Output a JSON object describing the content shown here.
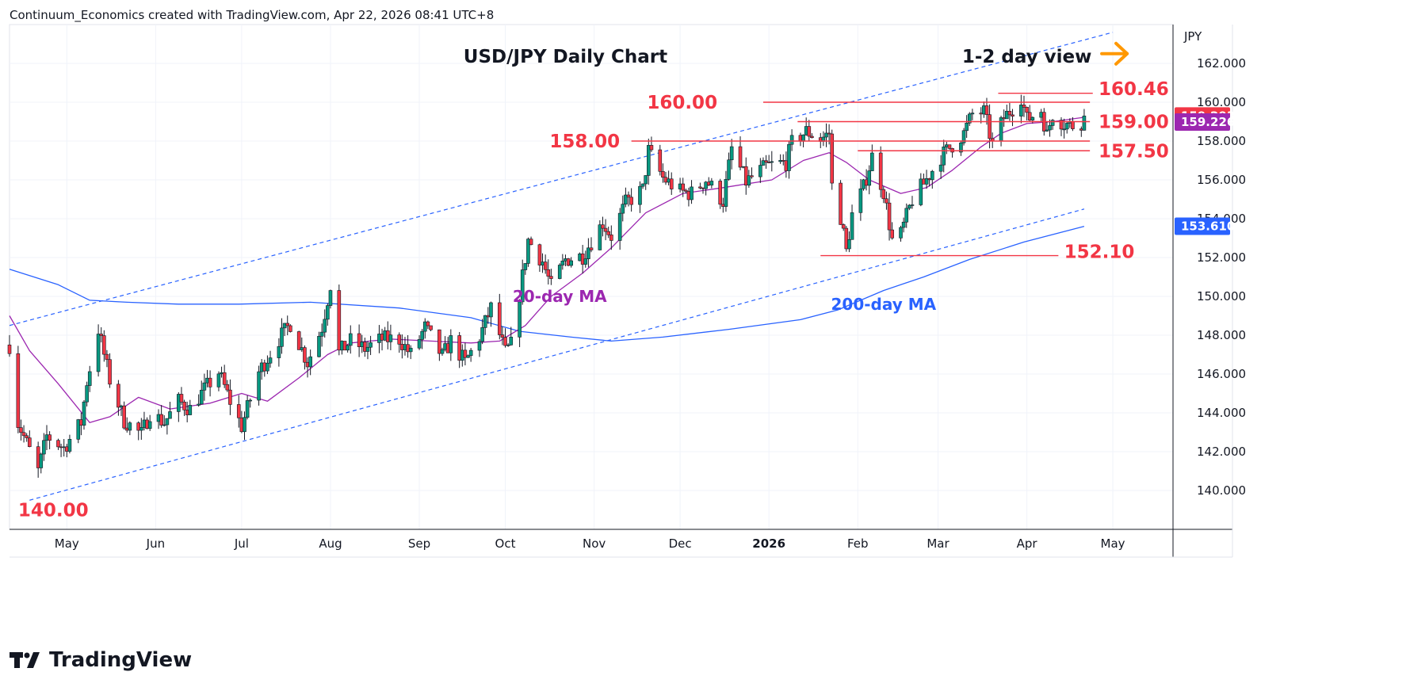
{
  "header": {
    "text": "Continuum_Economics created with TradingView.com, Apr 22, 2026 08:41 UTC+8"
  },
  "footer": {
    "brand": "TradingView",
    "logo_icon": "tradingview-logo-icon"
  },
  "colors": {
    "up": "#089981",
    "down": "#f23645",
    "level": "#f23645",
    "ma20": "#9c27b0",
    "ma200": "#2962ff",
    "channel": "#2962ff",
    "arrow": "#ff9800",
    "grid": "#f0f3fa"
  },
  "chart_data": {
    "type": "candlestick",
    "title": "USD/JPY Daily Chart",
    "subtitle": "1-2 day view",
    "currency": "JPY",
    "ylim": [
      138.0,
      164.0
    ],
    "yticks": [
      140,
      142,
      144,
      146,
      148,
      150,
      152,
      154,
      156,
      158,
      160,
      162
    ],
    "ytick_labels": [
      "140.000",
      "142.000",
      "144.000",
      "146.000",
      "148.000",
      "150.000",
      "152.000",
      "154.000",
      "156.000",
      "158.000",
      "160.000",
      "162.000"
    ],
    "x_start": "2025-04-11",
    "x_end": "2026-05-22",
    "xticks": [
      {
        "date": "2025-05-01",
        "label": "May"
      },
      {
        "date": "2025-06-01",
        "label": "Jun"
      },
      {
        "date": "2025-07-01",
        "label": "Jul"
      },
      {
        "date": "2025-08-01",
        "label": "Aug"
      },
      {
        "date": "2025-09-01",
        "label": "Sep"
      },
      {
        "date": "2025-10-01",
        "label": "Oct"
      },
      {
        "date": "2025-11-01",
        "label": "Nov"
      },
      {
        "date": "2025-12-01",
        "label": "Dec"
      },
      {
        "date": "2026-01-01",
        "label": "2026",
        "bold": true
      },
      {
        "date": "2026-02-01",
        "label": "Feb"
      },
      {
        "date": "2026-03-01",
        "label": "Mar"
      },
      {
        "date": "2026-04-01",
        "label": "Apr"
      },
      {
        "date": "2026-05-01",
        "label": "May"
      }
    ],
    "close_path": [
      [
        "2025-04-11",
        147.5
      ],
      [
        "2025-04-14",
        143.5
      ],
      [
        "2025-04-21",
        141.0
      ],
      [
        "2025-04-24",
        142.8
      ],
      [
        "2025-04-30",
        142.2
      ],
      [
        "2025-05-06",
        143.5
      ],
      [
        "2025-05-08",
        145.6
      ],
      [
        "2025-05-12",
        148.3
      ],
      [
        "2025-05-16",
        145.7
      ],
      [
        "2025-05-21",
        143.6
      ],
      [
        "2025-05-27",
        142.9
      ],
      [
        "2025-05-30",
        144.0
      ],
      [
        "2025-06-04",
        143.5
      ],
      [
        "2025-06-09",
        144.6
      ],
      [
        "2025-06-13",
        144.2
      ],
      [
        "2025-06-18",
        145.2
      ],
      [
        "2025-06-23",
        146.1
      ],
      [
        "2025-06-27",
        144.6
      ],
      [
        "2025-07-01",
        143.3
      ],
      [
        "2025-07-07",
        146.1
      ],
      [
        "2025-07-14",
        147.8
      ],
      [
        "2025-07-18",
        148.6
      ],
      [
        "2025-07-24",
        146.6
      ],
      [
        "2025-07-29",
        148.4
      ],
      [
        "2025-08-01",
        150.6
      ],
      [
        "2025-08-04",
        147.1
      ],
      [
        "2025-08-08",
        147.7
      ],
      [
        "2025-08-13",
        147.3
      ],
      [
        "2025-08-19",
        147.8
      ],
      [
        "2025-08-25",
        147.8
      ],
      [
        "2025-08-29",
        147.0
      ],
      [
        "2025-09-03",
        148.4
      ],
      [
        "2025-09-09",
        146.9
      ],
      [
        "2025-09-12",
        147.7
      ],
      [
        "2025-09-17",
        146.6
      ],
      [
        "2025-09-22",
        147.9
      ],
      [
        "2025-09-26",
        149.4
      ],
      [
        "2025-10-01",
        147.1
      ],
      [
        "2025-10-03",
        147.5
      ],
      [
        "2025-10-06",
        150.1
      ],
      [
        "2025-10-09",
        152.9
      ],
      [
        "2025-10-14",
        151.8
      ],
      [
        "2025-10-17",
        150.5
      ],
      [
        "2025-10-22",
        151.9
      ],
      [
        "2025-10-28",
        152.1
      ],
      [
        "2025-11-04",
        153.8
      ],
      [
        "2025-11-07",
        153.1
      ],
      [
        "2025-11-12",
        154.8
      ],
      [
        "2025-11-18",
        155.5
      ],
      [
        "2025-11-20",
        157.5
      ],
      [
        "2025-11-25",
        156.1
      ],
      [
        "2025-12-01",
        155.4
      ],
      [
        "2025-12-05",
        155.3
      ],
      [
        "2025-12-10",
        156.0
      ],
      [
        "2025-12-16",
        154.9
      ],
      [
        "2025-12-19",
        157.6
      ],
      [
        "2025-12-24",
        155.9
      ],
      [
        "2025-12-31",
        156.7
      ],
      [
        "2026-01-07",
        156.9
      ],
      [
        "2026-01-09",
        157.9
      ],
      [
        "2026-01-14",
        158.5
      ],
      [
        "2026-01-19",
        158.1
      ],
      [
        "2026-01-22",
        158.4
      ],
      [
        "2026-01-23",
        155.7
      ],
      [
        "2026-01-26",
        154.1
      ],
      [
        "2026-01-28",
        152.3
      ],
      [
        "2026-01-30",
        154.2
      ],
      [
        "2026-02-03",
        155.6
      ],
      [
        "2026-02-06",
        157.2
      ],
      [
        "2026-02-10",
        155.4
      ],
      [
        "2026-02-13",
        152.9
      ],
      [
        "2026-02-16",
        153.2
      ],
      [
        "2026-02-20",
        155.0
      ],
      [
        "2026-02-24",
        155.8
      ],
      [
        "2026-03-02",
        157.2
      ],
      [
        "2026-03-06",
        157.8
      ],
      [
        "2026-03-10",
        158.4
      ],
      [
        "2026-03-13",
        159.4
      ],
      [
        "2026-03-17",
        159.5
      ],
      [
        "2026-03-20",
        157.8
      ],
      [
        "2026-03-24",
        159.2
      ],
      [
        "2026-03-27",
        159.7
      ],
      [
        "2026-03-30",
        160.3
      ],
      [
        "2026-04-01",
        159.1
      ],
      [
        "2026-04-06",
        159.6
      ],
      [
        "2026-04-08",
        158.3
      ],
      [
        "2026-04-10",
        159.4
      ],
      [
        "2026-04-14",
        158.9
      ],
      [
        "2026-04-17",
        158.8
      ],
      [
        "2026-04-20",
        159.0
      ],
      [
        "2026-04-21",
        159.3
      ]
    ],
    "ma20_path": [
      [
        "2025-04-11",
        149.0
      ],
      [
        "2025-04-18",
        147.2
      ],
      [
        "2025-04-28",
        145.5
      ],
      [
        "2025-05-09",
        143.5
      ],
      [
        "2025-05-16",
        143.8
      ],
      [
        "2025-05-26",
        144.8
      ],
      [
        "2025-06-06",
        144.2
      ],
      [
        "2025-06-20",
        144.5
      ],
      [
        "2025-07-01",
        145.0
      ],
      [
        "2025-07-10",
        144.6
      ],
      [
        "2025-07-21",
        145.8
      ],
      [
        "2025-07-31",
        147.0
      ],
      [
        "2025-08-08",
        147.6
      ],
      [
        "2025-08-22",
        147.8
      ],
      [
        "2025-09-05",
        147.7
      ],
      [
        "2025-09-19",
        147.6
      ],
      [
        "2025-09-29",
        147.7
      ],
      [
        "2025-10-08",
        148.5
      ],
      [
        "2025-10-17",
        150.0
      ],
      [
        "2025-10-28",
        151.2
      ],
      [
        "2025-11-07",
        152.5
      ],
      [
        "2025-11-19",
        154.3
      ],
      [
        "2025-12-02",
        155.3
      ],
      [
        "2025-12-16",
        155.6
      ],
      [
        "2026-01-02",
        156.0
      ],
      [
        "2026-01-13",
        157.0
      ],
      [
        "2026-01-22",
        157.4
      ],
      [
        "2026-01-28",
        156.9
      ],
      [
        "2026-02-05",
        156.0
      ],
      [
        "2026-02-16",
        155.3
      ],
      [
        "2026-02-25",
        155.6
      ],
      [
        "2026-03-06",
        156.5
      ],
      [
        "2026-03-16",
        157.7
      ],
      [
        "2026-03-23",
        158.4
      ],
      [
        "2026-04-01",
        158.9
      ],
      [
        "2026-04-10",
        159.0
      ],
      [
        "2026-04-21",
        159.226
      ]
    ],
    "ma200_path": [
      [
        "2025-04-11",
        151.4
      ],
      [
        "2025-04-28",
        150.6
      ],
      [
        "2025-05-09",
        149.8
      ],
      [
        "2025-05-22",
        149.7
      ],
      [
        "2025-06-09",
        149.6
      ],
      [
        "2025-06-30",
        149.6
      ],
      [
        "2025-07-25",
        149.7
      ],
      [
        "2025-08-25",
        149.4
      ],
      [
        "2025-09-19",
        148.9
      ],
      [
        "2025-10-06",
        148.2
      ],
      [
        "2025-10-24",
        147.9
      ],
      [
        "2025-11-07",
        147.7
      ],
      [
        "2025-11-25",
        147.9
      ],
      [
        "2025-12-18",
        148.3
      ],
      [
        "2026-01-12",
        148.8
      ],
      [
        "2026-01-25",
        149.3
      ],
      [
        "2026-02-10",
        150.3
      ],
      [
        "2026-02-24",
        151.0
      ],
      [
        "2026-03-12",
        151.9
      ],
      [
        "2026-03-31",
        152.8
      ],
      [
        "2026-04-21",
        153.61
      ]
    ],
    "channel_upper": [
      [
        "2025-04-11",
        148.5
      ],
      [
        "2026-05-01",
        163.6
      ]
    ],
    "channel_lower": [
      [
        "2025-04-18",
        139.5
      ],
      [
        "2026-04-21",
        154.5
      ]
    ],
    "levels": [
      {
        "value": 160.46,
        "label": "160.46",
        "from": "2026-03-22",
        "to": "2026-04-24",
        "label_date": "2026-04-26",
        "label_y": 160.7
      },
      {
        "value": 160.0,
        "label": "160.00",
        "from": "2025-12-30",
        "to": "2026-04-23",
        "label_date": "2025-12-14",
        "label_y": 160.0,
        "label_side": "left"
      },
      {
        "value": 159.0,
        "label": "159.00",
        "from": "2026-01-11",
        "to": "2026-04-23",
        "label_date": "2026-04-26",
        "label_y": 159.0
      },
      {
        "value": 158.0,
        "label": "158.00",
        "from": "2025-11-14",
        "to": "2026-04-23",
        "label_date": "2025-11-10",
        "label_y": 158.0,
        "label_side": "left"
      },
      {
        "value": 157.5,
        "label": "157.50",
        "from": "2026-02-01",
        "to": "2026-04-23",
        "label_date": "2026-04-26",
        "label_y": 157.5
      },
      {
        "value": 152.1,
        "label": "152.10",
        "from": "2026-01-19",
        "to": "2026-04-12",
        "label_date": "2026-04-14",
        "label_y": 152.3
      },
      {
        "value": 140.0,
        "label": "140.00",
        "label_date": "2025-04-14",
        "label_y": 139.0
      }
    ],
    "annotations": {
      "ma20_label": {
        "text": "20-day MA",
        "date": "2025-10-20",
        "y": 150.0
      },
      "ma200_label": {
        "text": "200-day MA",
        "date": "2026-02-10",
        "y": 149.6
      },
      "arrow": {
        "direction": "right",
        "date": "2026-05-01",
        "y": 162.5
      }
    },
    "last_values": [
      {
        "label": "159.293",
        "value": 159.293,
        "color": "#f23645"
      },
      {
        "label": "159.226",
        "value": 159.226,
        "color": "#9c27b0"
      },
      {
        "label": "153.610",
        "value": 153.61,
        "color": "#2962ff"
      }
    ]
  }
}
